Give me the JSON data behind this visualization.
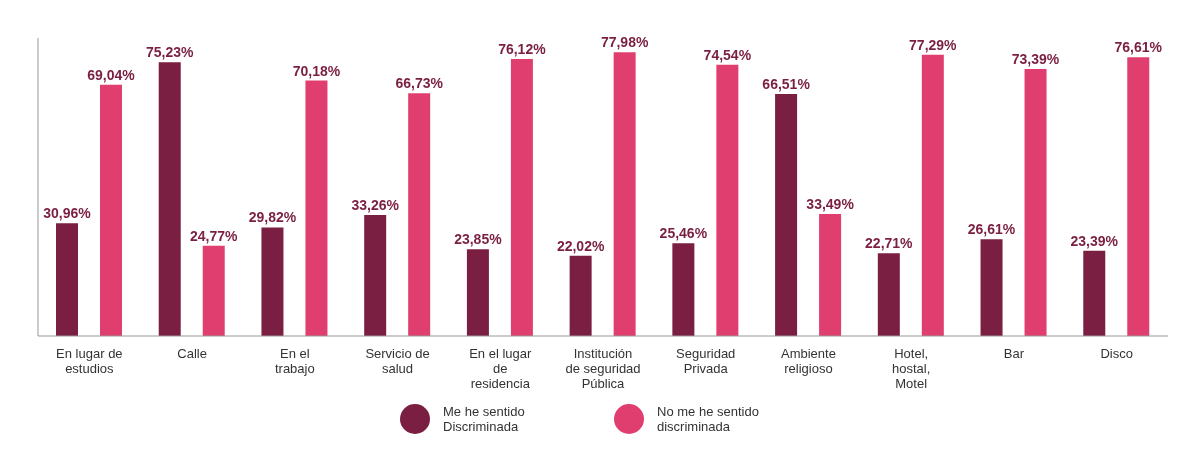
{
  "chart_data": {
    "type": "bar",
    "categories": [
      "En lugar de estudios",
      "Calle",
      "En el trabajo",
      "Servicio de salud",
      "En el lugar de residencia",
      "Institución de seguridad Pública",
      "Seguridad Privada",
      "Ambiente religioso",
      "Hotel, hostal, Motel",
      "Bar",
      "Disco"
    ],
    "series": [
      {
        "name": "Me he sentido Discriminada",
        "color": "#7a1f42",
        "values": [
          30.96,
          75.23,
          29.82,
          33.26,
          23.85,
          22.02,
          25.46,
          66.51,
          22.71,
          26.61,
          23.39
        ],
        "value_labels": [
          "30,96%",
          "75,23%",
          "29,82%",
          "33,26%",
          "23,85%",
          "22,02%",
          "25,46%",
          "66,51%",
          "22,71%",
          "26,61%",
          "23,39%"
        ]
      },
      {
        "name": "No me he sentido discriminada",
        "color": "#e03e6e",
        "values": [
          69.04,
          24.77,
          70.18,
          66.73,
          76.12,
          77.98,
          74.54,
          33.49,
          77.29,
          73.39,
          76.61
        ],
        "value_labels": [
          "69,04%",
          "24,77%",
          "70,18%",
          "66,73%",
          "76,12%",
          "77,98%",
          "74,54%",
          "33,49%",
          "77,29%",
          "73,39%",
          "76,61%"
        ]
      }
    ],
    "legend": "bottom"
  }
}
